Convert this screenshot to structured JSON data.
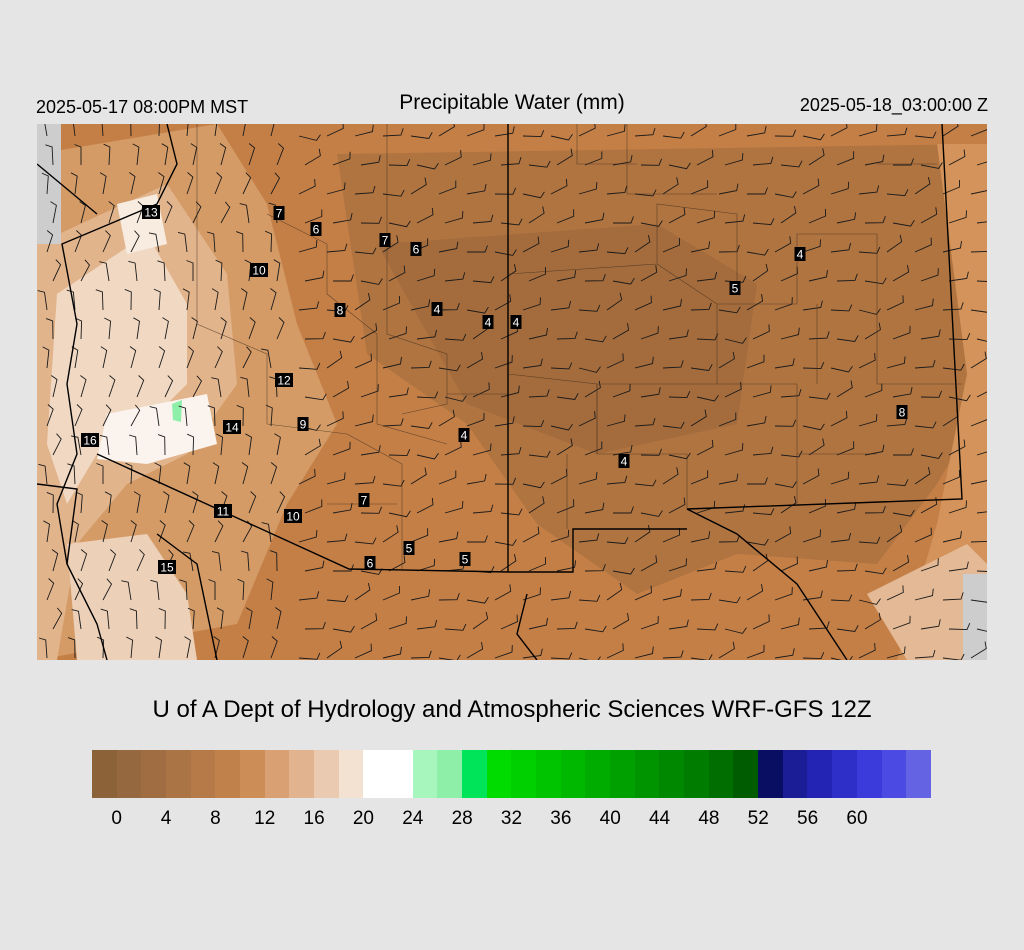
{
  "header": {
    "valid_local": "2025-05-17 08:00PM MST",
    "title": "Precipitable Water (mm)",
    "valid_utc": "2025-05-18_03:00:00 Z"
  },
  "credit": "U of A Dept of Hydrology and Atmospheric Sciences WRF-GFS 12Z",
  "colors": {
    "background": "#e5e5e5",
    "outside_domain": "#cdcdcd",
    "very_dry": "#9a6a3e",
    "dry": "#bf7d48",
    "moist_brown": "#cf8f55",
    "light_tan": "#e6bb94",
    "pale": "#f3e1d2",
    "white": "#ffffff",
    "boundary": "#000000"
  },
  "colorbar": {
    "colors": [
      "#8c6239",
      "#956840",
      "#a06d42",
      "#ab7445",
      "#b67a48",
      "#c1814b",
      "#cd8d56",
      "#d9a073",
      "#e2b38f",
      "#eacbb1",
      "#f3e1d2",
      "#ffffff",
      "#ffffff",
      "#a6f6bd",
      "#8ef0a8",
      "#00e45a",
      "#00dc00",
      "#00d000",
      "#00c400",
      "#00b800",
      "#00ac00",
      "#00a000",
      "#009400",
      "#008800",
      "#007c00",
      "#006e00",
      "#005c00",
      "#0a0e62",
      "#1a1d96",
      "#2424b4",
      "#2e2ec8",
      "#3b3bdc",
      "#4b4be4",
      "#6363e4"
    ],
    "tick_labels": [
      "0",
      "4",
      "8",
      "12",
      "16",
      "20",
      "24",
      "28",
      "32",
      "36",
      "40",
      "44",
      "48",
      "52",
      "56",
      "60"
    ]
  },
  "station_values": [
    {
      "label": "13"
    },
    {
      "label": "7"
    },
    {
      "label": "6"
    },
    {
      "label": "7"
    },
    {
      "label": "6"
    },
    {
      "label": "10"
    },
    {
      "label": "8"
    },
    {
      "label": "4"
    },
    {
      "label": "4"
    },
    {
      "label": "4"
    },
    {
      "label": "5"
    },
    {
      "label": "4"
    },
    {
      "label": "12"
    },
    {
      "label": "8"
    },
    {
      "label": "14"
    },
    {
      "label": "9"
    },
    {
      "label": "16"
    },
    {
      "label": "4"
    },
    {
      "label": "4"
    },
    {
      "label": "7"
    },
    {
      "label": "11"
    },
    {
      "label": "10"
    },
    {
      "label": "5"
    },
    {
      "label": "6"
    },
    {
      "label": "5"
    },
    {
      "label": "15"
    }
  ]
}
